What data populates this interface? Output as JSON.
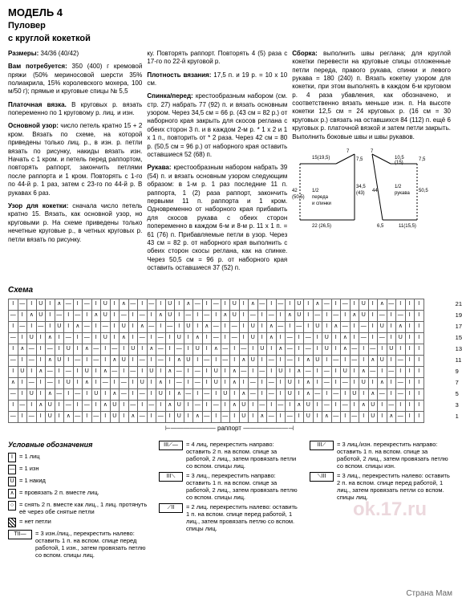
{
  "header": {
    "model": "МОДЕЛЬ 4",
    "title": "Пуловер",
    "subtitle": "с круглой кокеткой"
  },
  "col1": {
    "sizes_label": "Размеры:",
    "sizes": "34/36 (40/42)",
    "materials_label": "Вам потребуется:",
    "materials": "350 (400) г кремовой пряжи (50% мериносовой шерсти 35% полиакрила, 15% королевского мохера, 100 м/50 г); прямые и круговые спицы № 5,5",
    "garter_label": "Платочная вязка.",
    "garter": "В круговых р. вязать попеременно по 1 круговому р. лиц. и изн.",
    "main_pattern_label": "Основной узор:",
    "main_pattern": "число петель кратно 15 + 2 кром. Вязать по схеме, на которой приведены только лиц. р., в изн. р. петли вязать по рисунку, накиды вязать изн. Начать с 1 кром. и петель перед раппортом, повторять раппорт, закончить петлями после раппорта и 1 кром. Повторять с 1-го по 44-й р. 1 раз, затем с 23-го по 44-й р. В рукавах 6 раз.",
    "yoke_label": "Узор для кокетки:",
    "yoke": "сначала число петель кратно 15. Вязать, как основной узор, но круговыми р. На схеме приведены только нечетные круговые р., в четных круговых р. петли вязать по рисунку."
  },
  "col2": {
    "gauge_intro": "ку. Повторять раппорт. Повторять 4 (5) раза с 17-го по 22-й круговой р.",
    "gauge_label": "Плотность вязания:",
    "gauge": "17,5 п. и 19 р. = 10 х 10 см.",
    "front_back_label": "Спинка/перед:",
    "front_back": "крестообразным набором (см. стр. 27) набрать 77 (92) п. и вязать основным узором. Через 34,5 см = 66 р. (43 см = 82 р.) от наборного края закрыть для скосов реглана с обеих сторон 3 п. и в каждом 2-м р. * 1 х 2 и 1 х 1 п., повторить от * 2 раза. Через 42 см = 80 р. (50,5 см = 96 р.) от наборного края оставить оставшиеся 52 (68) п.",
    "sleeves_label": "Рукава:",
    "sleeves": "крестообразным набором набрать 39 (54) п. и вязать основным узором следующим образом: в 1-м р. 1 раз последние 11 п. раппорта, 1 (2) раза раппорт, закончить первыми 11 п. раппорта и 1 кром. Одновременно от наборного края прибавить для скосов рукава с обеих сторон попеременно в каждом 6-м и 8-м р. 11 х 1 п. = 61 (76) п. Прибавляемые петли в узор. Через 43 см = 82 р. от наборного края выполнить с обеих сторон скосы реглана, как на спинке. Через 50,5 см = 96 р. от наборного края оставить оставшиеся 37 (52) п."
  },
  "col3": {
    "assembly_label": "Сборка:",
    "assembly": "выполнить швы реглана; для круглой кокетки перевести на круговые спицы отложенные петли переда, правого рукава, спинки и левого рукава = 180 (240) п. Вязать кокетку узором для кокетки, при этом выполнять в каждом 6-м круговом р. 4 раза убавления, как обозначено, и соответственно вязать меньше изн. п. На высоте кокетки 12,5 см = 24 круговых р. (16 см = 30 круговых р.) связать на оставшихся 84 (112) п. ещё 6 круговых р. платочной вязкой и затем петли закрыть. Выполнить боковые швы и швы рукавов."
  },
  "schematic": {
    "body": {
      "top_left": "15 (19,5)",
      "top_right": "7",
      "side_left": "42 (50,5)",
      "side_right": "34,5 (43)",
      "middle": "7,5",
      "label": "1/2 переда и спинки",
      "bottom": "22 (26,5)"
    },
    "sleeve": {
      "top_left": "7",
      "top_right": "10,5 (15)",
      "side_right": "50,5",
      "middle_left": "44",
      "middle_right": "7,5",
      "label": "1/2 рукава",
      "bottom_left": "6,5",
      "bottom_right": "11 (15,5)"
    }
  },
  "chart": {
    "title": "Схема",
    "row_numbers": [
      "21",
      "19",
      "17",
      "15",
      "13",
      "11",
      "9",
      "7",
      "5",
      "3",
      "1"
    ],
    "rapport_label": "раппорт"
  },
  "legend": {
    "title": "Условные обозначения",
    "items_col1": [
      {
        "sym": "I",
        "text": "= 1 лиц"
      },
      {
        "sym": "—",
        "text": "= 1 изн"
      },
      {
        "sym": "U",
        "text": "= 1 накид"
      },
      {
        "sym": "∧",
        "text": "= провязать 2 п. вместе лиц."
      },
      {
        "sym": "○",
        "text": "= снять 2 п. вместе как лиц., 1 лиц. протянуть её через обе снятые петли"
      },
      {
        "sym": "",
        "text": "= нет петли",
        "hatched": true
      },
      {
        "sym": "TII—",
        "wide": true,
        "text": "= 3 изн./лиц., перекрестить налево: оставить 1 п. на вспом. спице перед работой, 1 изн., затем провязать петлю со вспом. спицы лиц."
      }
    ],
    "items_col2": [
      {
        "sym": "III⟋—",
        "wide": true,
        "text": "= 4 лиц, перекрестить направо: оставить 2 п. на вспом. спице за работой, 2 лиц., затем провязать петли со вспом. спицы лиц."
      },
      {
        "sym": "III⟍",
        "wide": true,
        "text": "= 3 лиц., перекрестить направо: оставить 1 п. на вспом. спице за работой, 2 лиц., затем провязать петлю со вспом. спицы лиц."
      },
      {
        "sym": "⟋II",
        "wide": true,
        "text": "= 2 лиц. перекрестить налево: оставить 1 п. на вспом. спице перед работой, 1 лиц., затем провязать петлю со вспом. спицы лиц."
      }
    ],
    "items_col3": [
      {
        "sym": "III⟋",
        "wide": true,
        "text": "= 3 лиц./изн. перекрестить направо: оставить 1 п. на вспом. спице за работой, 2 лиц., затем провязать петлю со вспом. спицы изн."
      },
      {
        "sym": "⟍III",
        "wide": true,
        "text": "= 3 лиц., перекрестить налево: оставить 2 п. на вспом. спице перед работой, 1 лиц., затем провязать петли со вспом. спицы лиц."
      }
    ]
  },
  "watermark": "ok.17.ru",
  "footer": "Страна Мам"
}
